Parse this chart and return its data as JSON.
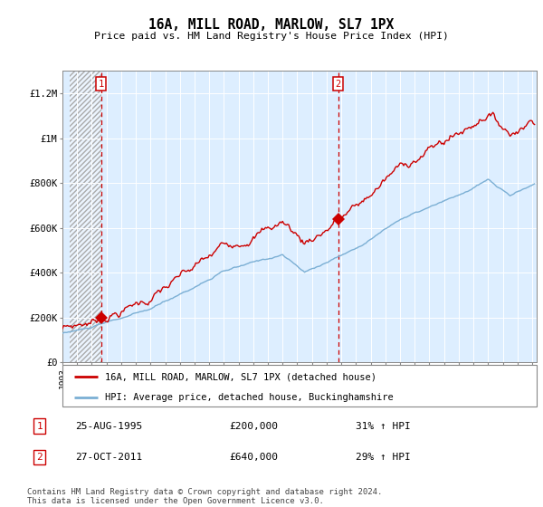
{
  "title": "16A, MILL ROAD, MARLOW, SL7 1PX",
  "subtitle": "Price paid vs. HM Land Registry's House Price Index (HPI)",
  "sale1_price": 200000,
  "sale1_display": "25-AUG-1995",
  "sale1_pct": "31% ↑ HPI",
  "sale2_price": 640000,
  "sale2_display": "27-OCT-2011",
  "sale2_pct": "29% ↑ HPI",
  "red_line_label": "16A, MILL ROAD, MARLOW, SL7 1PX (detached house)",
  "blue_line_label": "HPI: Average price, detached house, Buckinghamshire",
  "red_color": "#cc0000",
  "blue_color": "#7bafd4",
  "bg_color": "#ddeeff",
  "grid_color": "#ffffff",
  "ylim": [
    0,
    1300000
  ],
  "yticks": [
    0,
    200000,
    400000,
    600000,
    800000,
    1000000,
    1200000
  ],
  "ytick_labels": [
    "£0",
    "£200K",
    "£400K",
    "£600K",
    "£800K",
    "£1M",
    "£1.2M"
  ],
  "footer": "Contains HM Land Registry data © Crown copyright and database right 2024.\nThis data is licensed under the Open Government Licence v3.0.",
  "xstart": 1993.5,
  "xend": 2025.3,
  "sale1_t": 1995.622,
  "sale2_t": 2011.789
}
